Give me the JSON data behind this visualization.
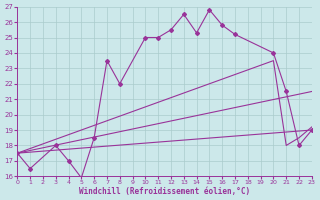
{
  "xlabel": "Windchill (Refroidissement éolien,°C)",
  "background_color": "#cce8ea",
  "grid_color": "#aacccc",
  "line_color": "#993399",
  "xlim": [
    0,
    23
  ],
  "ylim": [
    16,
    27
  ],
  "xticks": [
    0,
    1,
    2,
    3,
    4,
    5,
    6,
    7,
    8,
    9,
    10,
    11,
    12,
    13,
    14,
    15,
    16,
    17,
    18,
    19,
    20,
    21,
    22,
    23
  ],
  "yticks": [
    16,
    17,
    18,
    19,
    20,
    21,
    22,
    23,
    24,
    25,
    26,
    27
  ],
  "line1_x": [
    0,
    1,
    3,
    4,
    5,
    6,
    7,
    8,
    10,
    11,
    12,
    13,
    14,
    15,
    16,
    17,
    20,
    21,
    22,
    23
  ],
  "line1_y": [
    17.5,
    16.5,
    18.0,
    17.0,
    15.9,
    18.5,
    23.5,
    22.0,
    25.0,
    25.0,
    25.5,
    26.5,
    25.3,
    26.8,
    25.8,
    25.2,
    24.0,
    21.5,
    18.0,
    19.0
  ],
  "line2_x": [
    0,
    6,
    20,
    21,
    22,
    23
  ],
  "line2_y": [
    17.5,
    19.3,
    23.5,
    18.0,
    18.5,
    19.2
  ],
  "line3_x": [
    0,
    23
  ],
  "line3_y": [
    17.5,
    21.5
  ],
  "line4_x": [
    0,
    23
  ],
  "line4_y": [
    17.5,
    19.0
  ]
}
